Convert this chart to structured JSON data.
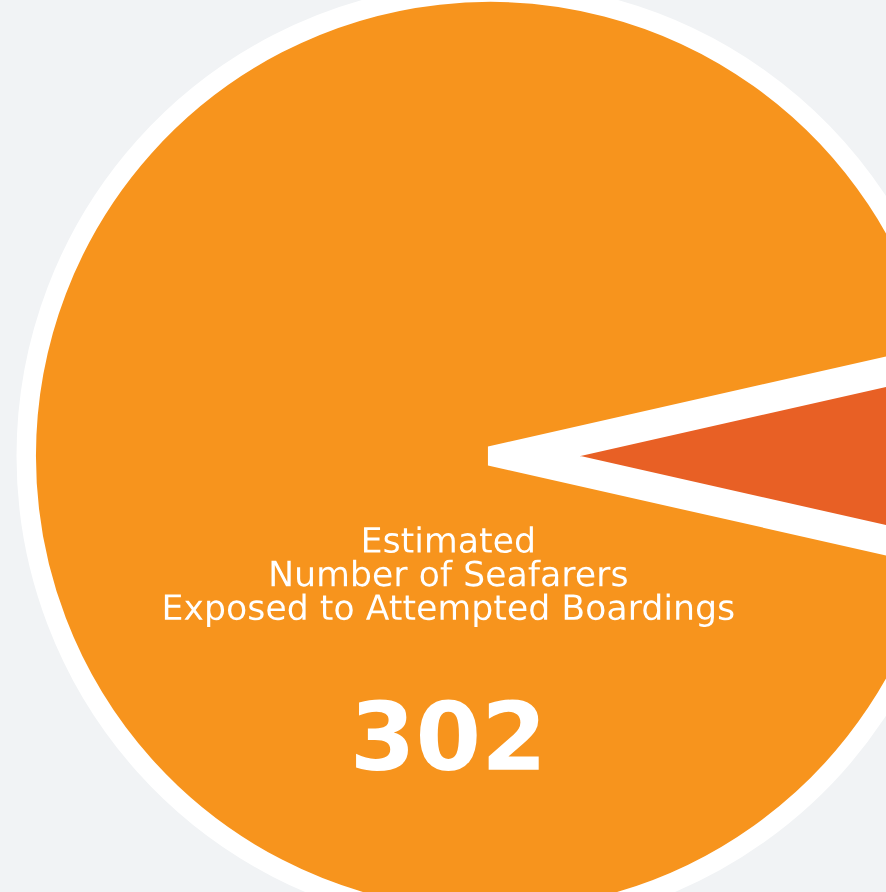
{
  "chart_data": {
    "type": "pie",
    "categories": [
      "Estimated\nNumber of Seafarers\nExposed to Attempted Boardings",
      null
    ],
    "values": [
      302,
      23
    ],
    "colors": [
      "#f7941d",
      "#e86025"
    ],
    "value_labels": [
      "302",
      null
    ]
  }
}
